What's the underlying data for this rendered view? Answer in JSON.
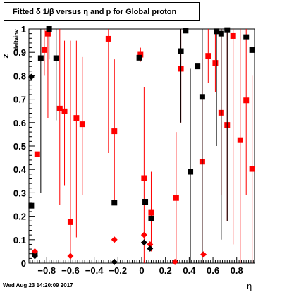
{
  "title": "Fitted δ 1/β versus η and p for Global proton",
  "footer": "Wed Aug 23 14:20:09 2017",
  "chart_data": {
    "type": "scatter",
    "title": "Fitted δ 1/β versus η and p for Global proton",
    "xlabel": "η",
    "ylabel": "z",
    "ylabel_subscript": "deltainv",
    "xlim": [
      -0.95,
      0.95
    ],
    "ylim": [
      0,
      1
    ],
    "grid": false,
    "xticks": [
      -0.8,
      -0.6,
      -0.4,
      -0.2,
      0,
      0.2,
      0.4,
      0.6,
      0.8
    ],
    "xtick_labels": [
      "−0.8",
      "−0.6",
      "−0.4",
      "−0.2",
      "0",
      "0.2",
      "0.4",
      "0.6",
      "0.8"
    ],
    "yticks": [
      0,
      0.1,
      0.2,
      0.3,
      0.4,
      0.5,
      0.6,
      0.7,
      0.8,
      0.9,
      1
    ],
    "ytick_labels": [
      "0",
      "0.1",
      "0.2",
      "0.3",
      "0.4",
      "0.5",
      "0.6",
      "0.7",
      "0.8",
      "0.9",
      "1"
    ],
    "colors": {
      "black": "#000000",
      "red": "#ff0000"
    },
    "series": [
      {
        "marker": "square",
        "color": "#ff0000",
        "points": [
          {
            "x": -0.88,
            "y": 0.465,
            "lo": 0.465,
            "hi": 0.465
          },
          {
            "x": -0.82,
            "y": 0.91,
            "lo": 0.8,
            "hi": 1.0
          },
          {
            "x": -0.79,
            "y": 0.98,
            "lo": 0.62,
            "hi": 1.0
          },
          {
            "x": -0.69,
            "y": 0.66,
            "lo": 0.25,
            "hi": 1.0
          },
          {
            "x": -0.65,
            "y": 0.648,
            "lo": 0.33,
            "hi": 0.95
          },
          {
            "x": -0.6,
            "y": 0.175,
            "lo": 0.03,
            "hi": 0.95
          },
          {
            "x": -0.55,
            "y": 0.62,
            "lo": 0.11,
            "hi": 0.95
          },
          {
            "x": -0.5,
            "y": 0.593,
            "lo": 0.29,
            "hi": 0.88
          },
          {
            "x": -0.28,
            "y": 0.958,
            "lo": 0.47,
            "hi": 1.0
          },
          {
            "x": -0.23,
            "y": 0.563,
            "lo": 0.26,
            "hi": 0.87
          },
          {
            "x": -0.01,
            "y": 0.89,
            "lo": 0.86,
            "hi": 0.92
          },
          {
            "x": 0.02,
            "y": 0.363,
            "lo": 0.0,
            "hi": 0.75
          },
          {
            "x": 0.08,
            "y": 0.215,
            "lo": 0.05,
            "hi": 0.39
          },
          {
            "x": 0.29,
            "y": 0.278,
            "lo": 0.0,
            "hi": 0.56
          },
          {
            "x": 0.33,
            "y": 0.83,
            "lo": 0.6,
            "hi": 1.0
          },
          {
            "x": 0.51,
            "y": 0.433,
            "lo": 0.0,
            "hi": 0.87
          },
          {
            "x": 0.56,
            "y": 0.885,
            "lo": 0.77,
            "hi": 1.0
          },
          {
            "x": 0.62,
            "y": 0.855,
            "lo": 0.73,
            "hi": 0.98
          },
          {
            "x": 0.67,
            "y": 0.642,
            "lo": 0.29,
            "hi": 1.0
          },
          {
            "x": 0.72,
            "y": 0.59,
            "lo": 0.18,
            "hi": 1.0
          },
          {
            "x": 0.77,
            "y": 0.97,
            "lo": 0.08,
            "hi": 1.0
          },
          {
            "x": 0.83,
            "y": 0.525,
            "lo": 0.0,
            "hi": 1.0
          },
          {
            "x": 0.88,
            "y": 0.695,
            "lo": 0.29,
            "hi": 1.0
          },
          {
            "x": 0.93,
            "y": 0.402,
            "lo": 0.0,
            "hi": 0.8
          }
        ]
      },
      {
        "marker": "square",
        "color": "#000000",
        "points": [
          {
            "x": -0.93,
            "y": 0.245,
            "lo": 0.245,
            "hi": 0.245
          },
          {
            "x": -0.9,
            "y": 0.04,
            "lo": 0.04,
            "hi": 0.04
          },
          {
            "x": -0.85,
            "y": 0.875,
            "lo": 0.3,
            "hi": 1.0
          },
          {
            "x": -0.78,
            "y": 1.0,
            "lo": 0.87,
            "hi": 1.0
          },
          {
            "x": -0.72,
            "y": 0.875,
            "lo": 0.61,
            "hi": 1.0
          },
          {
            "x": -0.23,
            "y": 0.258,
            "lo": 0.258,
            "hi": 0.258
          },
          {
            "x": -0.02,
            "y": 0.877,
            "lo": 0.877,
            "hi": 0.877
          },
          {
            "x": 0.03,
            "y": 0.262,
            "lo": 0.262,
            "hi": 0.262
          },
          {
            "x": 0.08,
            "y": 0.19,
            "lo": 0.19,
            "hi": 0.19
          },
          {
            "x": 0.33,
            "y": 0.905,
            "lo": 0.6,
            "hi": 1.0
          },
          {
            "x": 0.37,
            "y": 0.993,
            "lo": 0.993,
            "hi": 0.993
          },
          {
            "x": 0.41,
            "y": 0.39,
            "lo": 0.0,
            "hi": 0.83
          },
          {
            "x": 0.47,
            "y": 0.84,
            "lo": 0.84,
            "hi": 0.84
          },
          {
            "x": 0.51,
            "y": 0.71,
            "lo": 0.0,
            "hi": 1.0
          },
          {
            "x": 0.63,
            "y": 0.99,
            "lo": 0.5,
            "hi": 1.0
          },
          {
            "x": 0.67,
            "y": 0.98,
            "lo": 0.1,
            "hi": 1.0
          },
          {
            "x": 0.72,
            "y": 0.995,
            "lo": 0.18,
            "hi": 1.0
          },
          {
            "x": 0.88,
            "y": 0.965,
            "lo": 0.965,
            "hi": 0.965
          },
          {
            "x": 0.93,
            "y": 0.91,
            "lo": 0.91,
            "hi": 0.91
          }
        ]
      },
      {
        "marker": "diamond",
        "color": "#ff0000",
        "points": [
          {
            "x": -0.9,
            "y": 0.05
          },
          {
            "x": -0.6,
            "y": 0.03
          },
          {
            "x": -0.23,
            "y": 0.1
          },
          {
            "x": 0.02,
            "y": 0.12
          },
          {
            "x": 0.07,
            "y": 0.08
          },
          {
            "x": 0.28,
            "y": 0.005
          },
          {
            "x": 0.52,
            "y": 0.037
          }
        ]
      },
      {
        "marker": "diamond",
        "color": "#000000",
        "points": [
          {
            "x": -0.93,
            "y": 0.795
          },
          {
            "x": -0.9,
            "y": 0.03
          },
          {
            "x": -0.23,
            "y": 0.005
          },
          {
            "x": 0.02,
            "y": 0.088
          },
          {
            "x": 0.07,
            "y": 0.062
          }
        ]
      }
    ]
  }
}
